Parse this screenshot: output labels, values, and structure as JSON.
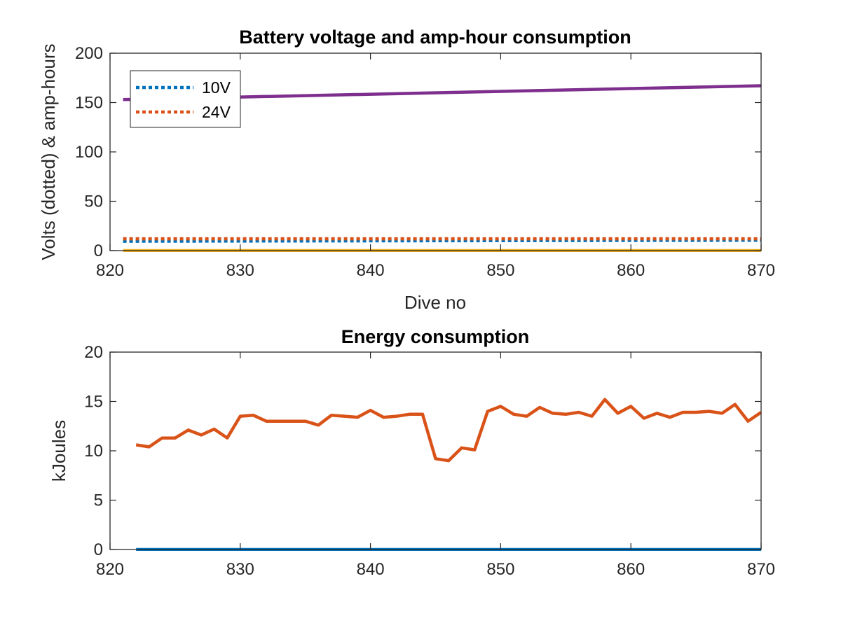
{
  "chart_data": [
    {
      "type": "line",
      "title": "Battery voltage and amp-hour consumption",
      "xlabel": "Dive no",
      "ylabel": "Volts (dotted) & amp-hours",
      "xlim": [
        820,
        870
      ],
      "ylim": [
        0,
        200
      ],
      "xticks": [
        820,
        830,
        840,
        850,
        860,
        870
      ],
      "yticks": [
        0,
        50,
        100,
        150,
        200
      ],
      "grid": false,
      "legend_position": "top-left",
      "series": [
        {
          "name": "10V",
          "style": "dotted",
          "color": "#0072BD",
          "x": [
            821,
            870
          ],
          "y": [
            9.5,
            10.5
          ]
        },
        {
          "name": "24V",
          "style": "dotted",
          "color": "#D95319",
          "x": [
            821,
            870
          ],
          "y": [
            12,
            12
          ]
        },
        {
          "style": "solid",
          "color": "#7E2F8E",
          "x": [
            821,
            870
          ],
          "y": [
            153,
            167
          ]
        },
        {
          "style": "solid",
          "color": "#EDB120",
          "x": [
            821,
            870
          ],
          "y": [
            0,
            0
          ]
        }
      ]
    },
    {
      "type": "line",
      "title": "Energy consumption",
      "xlabel": "",
      "ylabel": "kJoules",
      "xlim": [
        820,
        870
      ],
      "ylim": [
        0,
        20
      ],
      "xticks": [
        820,
        830,
        840,
        850,
        860,
        870
      ],
      "yticks": [
        0,
        5,
        10,
        15,
        20
      ],
      "grid": false,
      "series": [
        {
          "style": "solid",
          "color": "#D95319",
          "x": [
            822,
            823,
            824,
            825,
            826,
            827,
            828,
            829,
            830,
            831,
            832,
            833,
            834,
            835,
            836,
            837,
            838,
            839,
            840,
            841,
            842,
            843,
            844,
            845,
            846,
            847,
            848,
            849,
            850,
            851,
            852,
            853,
            854,
            855,
            856,
            857,
            858,
            859,
            860,
            861,
            862,
            863,
            864,
            865,
            866,
            867,
            868,
            869,
            870
          ],
          "y": [
            10.6,
            10.4,
            11.3,
            11.3,
            12.1,
            11.6,
            12.2,
            11.3,
            13.5,
            13.6,
            13.0,
            13.0,
            13.0,
            13.0,
            12.6,
            13.6,
            13.5,
            13.4,
            14.1,
            13.4,
            13.5,
            13.7,
            13.7,
            9.2,
            9.0,
            10.3,
            10.1,
            14.0,
            14.5,
            13.7,
            13.5,
            14.4,
            13.8,
            13.7,
            13.9,
            13.5,
            15.2,
            13.8,
            14.5,
            13.3,
            13.8,
            13.4,
            13.9,
            13.9,
            14.0,
            13.8,
            14.7,
            13.0,
            13.9
          ]
        },
        {
          "style": "solid",
          "color": "#0072BD",
          "x": [
            822,
            870
          ],
          "y": [
            0,
            0
          ]
        }
      ]
    }
  ]
}
